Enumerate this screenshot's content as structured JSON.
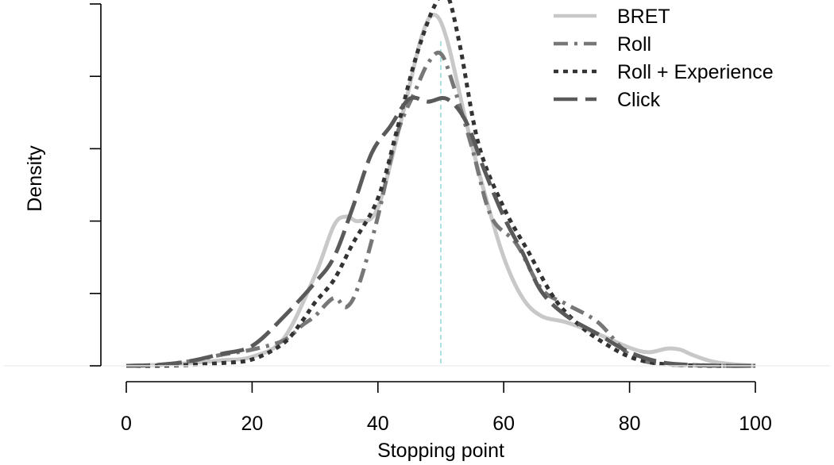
{
  "chart_data": {
    "type": "line",
    "title": "",
    "xlabel": "Stopping point",
    "ylabel": "Density",
    "xlim": [
      0,
      100
    ],
    "ylim": [
      0,
      0.04
    ],
    "xticks": [
      0,
      20,
      40,
      60,
      80,
      100
    ],
    "xtick_labels": [
      "0",
      "20",
      "40",
      "60",
      "80",
      "100"
    ],
    "yticks": [
      0,
      0.008,
      0.016,
      0.024,
      0.032,
      0.04
    ],
    "grid": false,
    "legend_position": "top-right",
    "reference_line": {
      "x": 50,
      "color": "#a8dede",
      "style": "dashed"
    },
    "series": [
      {
        "name": "BRET",
        "color": "#c8c8c8",
        "dash": "",
        "x": [
          0,
          5,
          10,
          15,
          20,
          25,
          30,
          33,
          35,
          37,
          40,
          44,
          47,
          49,
          51,
          54,
          57,
          60,
          63,
          66,
          70,
          75,
          80,
          83,
          86,
          88,
          90,
          93,
          96,
          100
        ],
        "y": [
          0,
          0.0001,
          0.0003,
          0.0006,
          0.001,
          0.003,
          0.01,
          0.0155,
          0.0165,
          0.016,
          0.0175,
          0.028,
          0.0365,
          0.0388,
          0.036,
          0.027,
          0.019,
          0.012,
          0.0075,
          0.0055,
          0.0048,
          0.0035,
          0.002,
          0.0015,
          0.0019,
          0.0018,
          0.0012,
          0.0005,
          0.0002,
          0
        ]
      },
      {
        "name": "Roll",
        "color": "#777777",
        "dash": "18,8,4,8",
        "x": [
          0,
          5,
          10,
          15,
          20,
          25,
          28,
          30,
          33,
          35,
          37,
          40,
          43,
          46,
          48,
          50,
          52,
          55,
          58,
          62,
          66,
          70,
          75,
          80,
          85,
          90,
          95,
          100
        ],
        "y": [
          0,
          0.0001,
          0.0005,
          0.0012,
          0.0018,
          0.0028,
          0.0045,
          0.0055,
          0.0075,
          0.0065,
          0.009,
          0.0165,
          0.0255,
          0.0305,
          0.0335,
          0.0345,
          0.031,
          0.024,
          0.0165,
          0.0135,
          0.0085,
          0.0068,
          0.0048,
          0.0012,
          0.0002,
          0.0001,
          0,
          0
        ]
      },
      {
        "name": "Roll + Experience",
        "color": "#333333",
        "dash": "6,6",
        "x": [
          0,
          5,
          10,
          15,
          20,
          25,
          28,
          30,
          33,
          36,
          40,
          43,
          46,
          49,
          51,
          53,
          56,
          60,
          64,
          68,
          72,
          76,
          80,
          84,
          88,
          92,
          96,
          100
        ],
        "y": [
          0,
          0,
          0.0001,
          0.0003,
          0.0007,
          0.0025,
          0.005,
          0.007,
          0.0095,
          0.0135,
          0.0185,
          0.026,
          0.034,
          0.0398,
          0.041,
          0.0355,
          0.0245,
          0.0175,
          0.0125,
          0.0075,
          0.0045,
          0.0025,
          0.001,
          0.0003,
          0.0001,
          0,
          0,
          0
        ]
      },
      {
        "name": "Click",
        "color": "#5a5a5a",
        "dash": "30,10",
        "x": [
          0,
          5,
          10,
          15,
          20,
          25,
          30,
          33,
          36,
          39,
          42,
          45,
          48,
          51,
          54,
          57,
          60,
          63,
          66,
          70,
          75,
          80,
          85,
          90,
          95,
          100
        ],
        "y": [
          0,
          0.0001,
          0.0005,
          0.0013,
          0.0022,
          0.0054,
          0.0092,
          0.012,
          0.0175,
          0.0235,
          0.0265,
          0.0295,
          0.0292,
          0.0295,
          0.027,
          0.0215,
          0.0165,
          0.0125,
          0.0082,
          0.0055,
          0.0035,
          0.0015,
          0.0004,
          0.0001,
          0,
          0
        ]
      }
    ]
  }
}
